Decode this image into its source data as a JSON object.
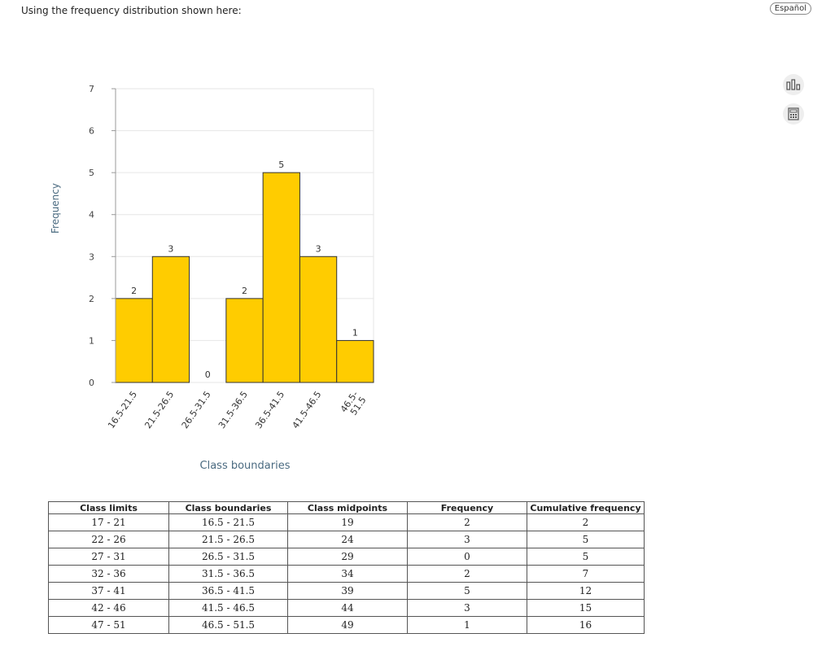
{
  "prompt": "Using the frequency distribution shown here:",
  "language_button": "Español",
  "toolbar": {
    "icons": [
      "bar-chart-icon",
      "calculator-icon"
    ]
  },
  "colors": {
    "bar_fill": "#ffcc00",
    "bar_stroke": "#333333",
    "grid": "#e6e6e6",
    "axis_label": "#4a6a80"
  },
  "chart_data": {
    "type": "bar",
    "title": "",
    "xlabel": "Class boundaries",
    "ylabel": "Frequency",
    "categories": [
      "16.5-21.5",
      "21.5-26.5",
      "26.5-31.5",
      "31.5-36.5",
      "36.5-41.5",
      "41.5-46.5",
      "46.5-51.5"
    ],
    "values": [
      2,
      3,
      0,
      2,
      5,
      3,
      1
    ],
    "ylim": [
      0,
      7
    ],
    "yticks": [
      0,
      1,
      2,
      3,
      4,
      5,
      6,
      7
    ],
    "grid": true
  },
  "table": {
    "headers": [
      "Class limits",
      "Class boundaries",
      "Class midpoints",
      "Frequency",
      "Cumulative frequency"
    ],
    "rows": [
      [
        "17 - 21",
        "16.5 - 21.5",
        "19",
        "2",
        "2"
      ],
      [
        "22 - 26",
        "21.5 - 26.5",
        "24",
        "3",
        "5"
      ],
      [
        "27 - 31",
        "26.5 - 31.5",
        "29",
        "0",
        "5"
      ],
      [
        "32 - 36",
        "31.5 - 36.5",
        "34",
        "2",
        "7"
      ],
      [
        "37 - 41",
        "36.5 - 41.5",
        "39",
        "5",
        "12"
      ],
      [
        "42 - 46",
        "41.5 - 46.5",
        "44",
        "3",
        "15"
      ],
      [
        "47 - 51",
        "46.5 - 51.5",
        "49",
        "1",
        "16"
      ]
    ]
  }
}
